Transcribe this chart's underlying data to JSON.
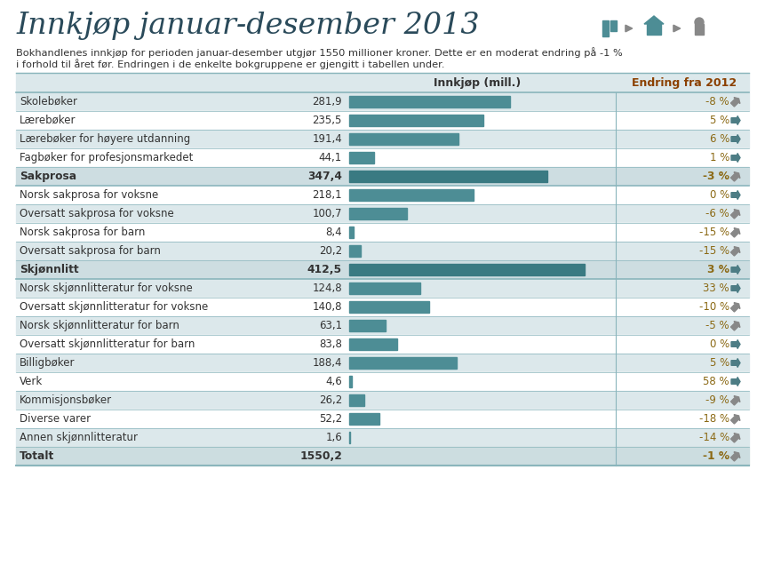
{
  "title": "Innkjøp januar-desember 2013",
  "subtitle_line1": "Bokhandlenes innkjøp for perioden januar-desember utgjør 1550 millioner kroner. Dette er en moderat endring på -1 %",
  "subtitle_line2": "i forhold til året før. Endringen i de enkelte bokgruppene er gjengitt i tabellen under.",
  "col_header_left": "Innkjøp (mill.)",
  "col_header_right": "Endring fra 2012",
  "categories": [
    "Skolebøker",
    "Lærebøker",
    "Lærebøker for høyere utdanning",
    "Fagbøker for profesjonsmarkedet",
    "Sakprosa",
    "Norsk sakprosa for voksne",
    "Oversatt sakprosa for voksne",
    "Norsk sakprosa for barn",
    "Oversatt sakprosa for barn",
    "Skjønnlitt",
    "Norsk skjønnlitteratur for voksne",
    "Oversatt skjønnlitteratur for voksne",
    "Norsk skjønnlitteratur for barn",
    "Oversatt skjønnlitteratur for barn",
    "Billigbøker",
    "Verk",
    "Kommisjonsbøker",
    "Diverse varer",
    "Annen skjønnlitteratur",
    "Totalt"
  ],
  "values_str": [
    "281,9",
    "235,5",
    "191,4",
    "44,1",
    "347,4",
    "218,1",
    "100,7",
    "8,4",
    "20,2",
    "412,5",
    "124,8",
    "140,8",
    "63,1",
    "83,8",
    "188,4",
    "4,6",
    "26,2",
    "52,2",
    "1,6",
    "1550,2"
  ],
  "values": [
    281.9,
    235.5,
    191.4,
    44.1,
    347.4,
    218.1,
    100.7,
    8.4,
    20.2,
    412.5,
    124.8,
    140.8,
    63.1,
    83.8,
    188.4,
    4.6,
    26.2,
    52.2,
    1.6,
    1550.2
  ],
  "changes": [
    "-8 %",
    "5 %",
    "6 %",
    "1 %",
    "-3 %",
    "0 %",
    "-6 %",
    "-15 %",
    "-15 %",
    "3 %",
    "33 %",
    "-10 %",
    "-5 %",
    "0 %",
    "5 %",
    "58 %",
    "-9 %",
    "-18 %",
    "-14 %",
    "-1 %"
  ],
  "change_vals": [
    -8,
    5,
    6,
    1,
    -3,
    0,
    -6,
    -15,
    -15,
    3,
    33,
    -10,
    -5,
    0,
    5,
    58,
    -9,
    -18,
    -14,
    -1
  ],
  "bold_rows": [
    4,
    9,
    19
  ],
  "totalt_row": 19,
  "bar_color_normal": "#4d8d95",
  "bar_color_bold": "#3a7a82",
  "bg_color": "#ffffff",
  "row_even_color": "#dce8eb",
  "row_odd_color": "#ffffff",
  "separator_color": "#8ab5bc",
  "text_color": "#333333",
  "change_color": "#8b6914",
  "header_change_color": "#8b4000",
  "max_bar_value": 450,
  "arrow_right_color": "#606060",
  "arrow_down_color": "#888888"
}
